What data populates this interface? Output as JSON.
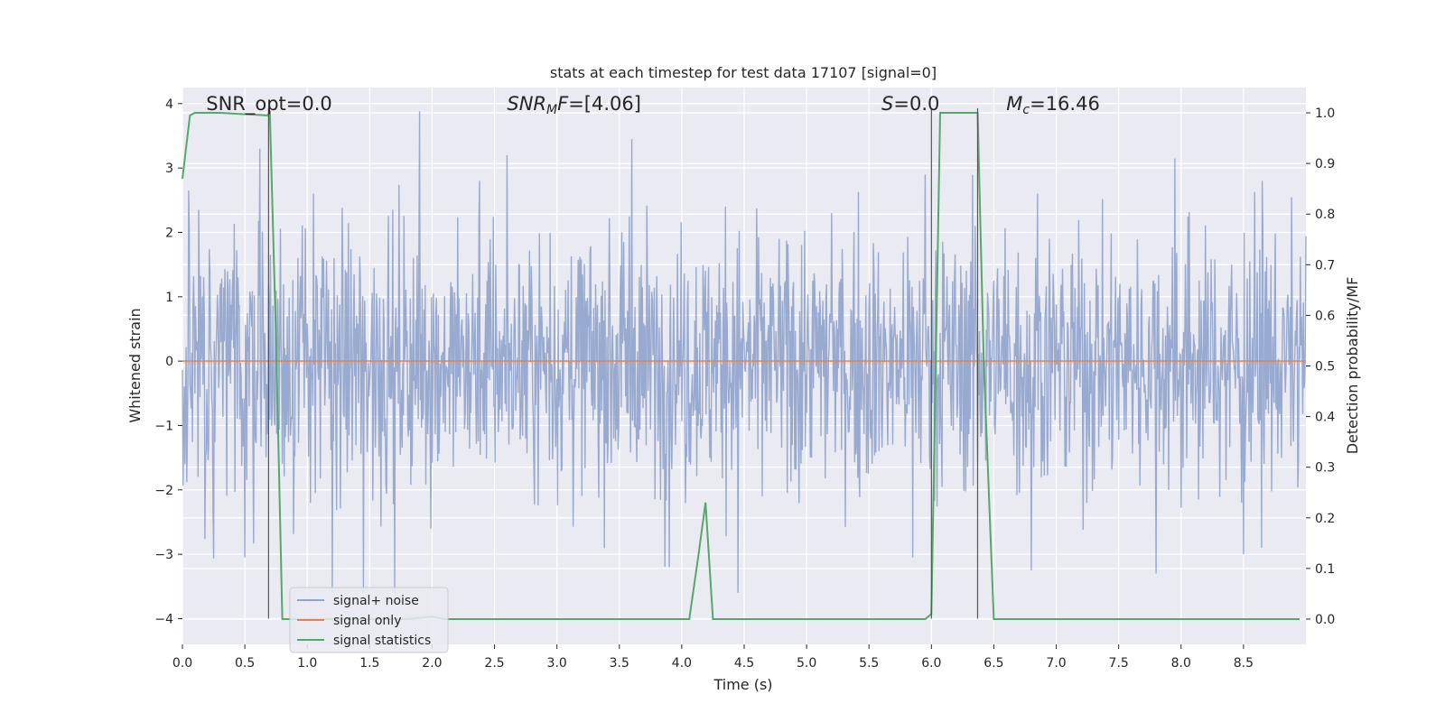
{
  "chart_data": {
    "type": "line",
    "title": "stats at each timestep for test data 17107 [signal=0]",
    "xlabel": "Time (s)",
    "ylabel": "Whitened strain",
    "y2label": "Detection probability/MF",
    "xlim": [
      0.0,
      9.0
    ],
    "ylim": [
      -4.4,
      4.25
    ],
    "y2lim": [
      -0.05,
      1.05
    ],
    "xticks": [
      0.0,
      0.5,
      1.0,
      1.5,
      2.0,
      2.5,
      3.0,
      3.5,
      4.0,
      4.5,
      5.0,
      5.5,
      6.0,
      6.5,
      7.0,
      7.5,
      8.0,
      8.5
    ],
    "xtick_labels": [
      "0.0",
      "0.5",
      "1.0",
      "1.5",
      "2.0",
      "2.5",
      "3.0",
      "3.5",
      "4.0",
      "4.5",
      "5.0",
      "5.5",
      "6.0",
      "6.5",
      "7.0",
      "7.5",
      "8.0",
      "8.5"
    ],
    "yticks": [
      -4,
      -3,
      -2,
      -1,
      0,
      1,
      2,
      3,
      4
    ],
    "ytick_labels": [
      "−4",
      "−3",
      "−2",
      "−1",
      "0",
      "1",
      "2",
      "3",
      "4"
    ],
    "y2ticks": [
      0.0,
      0.1,
      0.2,
      0.3,
      0.4,
      0.5,
      0.6,
      0.7,
      0.8,
      0.9,
      1.0
    ],
    "y2tick_labels": [
      "0.0",
      "0.1",
      "0.2",
      "0.3",
      "0.4",
      "0.5",
      "0.6",
      "0.7",
      "0.8",
      "0.9",
      "1.0"
    ],
    "grid": true,
    "legend_position": "lower-left",
    "annotations": [
      {
        "text": "SNR_opt=0.0",
        "x": 0.19,
        "y": 4.0
      },
      {
        "text": "SNR_MF=[4.06]",
        "x": 2.6,
        "y": 4.0
      },
      {
        "text": "S=0.0",
        "x": 5.6,
        "y": 4.0
      },
      {
        "text": "M_c=16.46",
        "x": 6.6,
        "y": 4.0
      }
    ],
    "vertical_lines": [
      0.69,
      6.0,
      6.37
    ],
    "series": [
      {
        "name": "signal+ noise",
        "color": "#8fa3cc",
        "axis": "left",
        "kind": "noise",
        "sigma": 1.0,
        "x_range": [
          0.0,
          9.0
        ],
        "sample_rate": 200,
        "peaks": [
          [
            0.05,
            2.65
          ],
          [
            0.13,
            2.35
          ],
          [
            0.62,
            3.3
          ],
          [
            1.05,
            2.6
          ],
          [
            1.9,
            3.88
          ],
          [
            2.38,
            2.8
          ],
          [
            2.6,
            3.2
          ],
          [
            3.6,
            3.45
          ],
          [
            4.35,
            2.4
          ],
          [
            5.2,
            2.3
          ],
          [
            5.95,
            2.9
          ],
          [
            6.35,
            2.1
          ],
          [
            6.85,
            2.6
          ],
          [
            7.95,
            3.15
          ],
          [
            8.65,
            2.8
          ],
          [
            4.45,
            -3.6
          ],
          [
            1.2,
            -3.6
          ],
          [
            1.45,
            -3.6
          ],
          [
            0.5,
            -3.05
          ],
          [
            1.7,
            -3.6
          ],
          [
            3.9,
            -3.2
          ],
          [
            5.85,
            -3.05
          ],
          [
            6.8,
            -3.25
          ],
          [
            7.8,
            -3.3
          ],
          [
            8.5,
            -3.0
          ]
        ]
      },
      {
        "name": "signal only",
        "color": "#dd8452",
        "axis": "left",
        "x": [
          0.0,
          9.0
        ],
        "y": [
          0.0,
          0.0
        ]
      },
      {
        "name": "signal statistics",
        "color": "#55a868",
        "axis": "right",
        "x": [
          0.0,
          0.06,
          0.1,
          0.2,
          0.3,
          0.68,
          0.7,
          0.75,
          0.8,
          0.9,
          1.4,
          1.8,
          2.0,
          2.1,
          2.5,
          3.0,
          3.5,
          4.0,
          4.06,
          4.13,
          4.19,
          4.25,
          4.5,
          5.0,
          5.5,
          5.95,
          6.0,
          6.07,
          6.1,
          6.37,
          6.42,
          6.5,
          7.0,
          7.5,
          8.0,
          8.5,
          8.95
        ],
        "y": [
          0.87,
          0.995,
          1.0,
          1.0,
          1.0,
          0.995,
          1.0,
          0.55,
          0.0,
          0.0,
          0.0,
          0.0,
          0.005,
          0.0,
          0.0,
          0.0,
          0.0,
          0.0,
          0.0,
          0.12,
          0.23,
          0.0,
          0.0,
          0.0,
          0.0,
          0.0,
          0.01,
          1.0,
          1.0,
          1.0,
          0.5,
          0.0,
          0.0,
          0.0,
          0.0,
          0.0,
          0.0
        ]
      }
    ]
  }
}
